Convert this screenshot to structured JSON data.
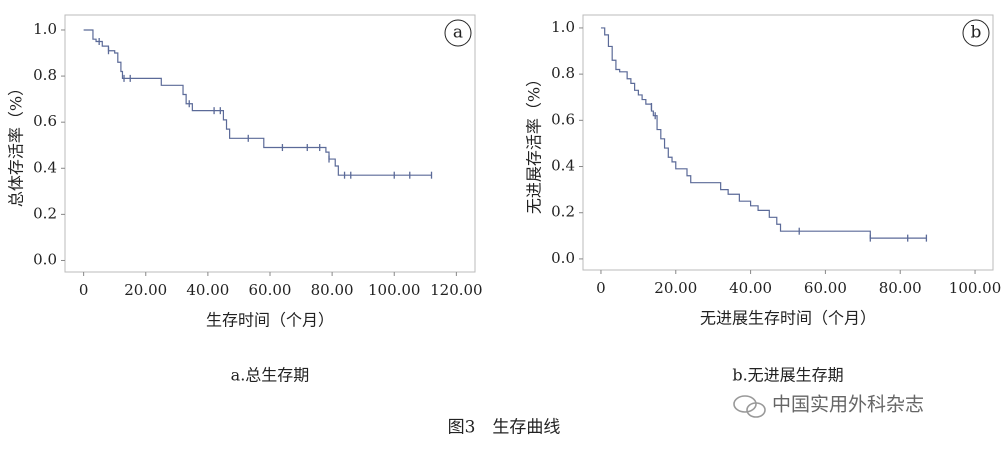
{
  "chart_data": [
    {
      "type": "step",
      "panel": "a",
      "caption": "a.总生存期",
      "y_label": "总体存活率（%）",
      "x_label": "生存时间（个月）",
      "color": "#5b6a98",
      "x": [
        0,
        3,
        4,
        6,
        8,
        10,
        11,
        12,
        12.5,
        25,
        32,
        33,
        35,
        45,
        46,
        47,
        58,
        78,
        79,
        81,
        82,
        112
      ],
      "values": [
        1.0,
        0.96,
        0.95,
        0.93,
        0.91,
        0.9,
        0.86,
        0.82,
        0.79,
        0.76,
        0.72,
        0.68,
        0.65,
        0.61,
        0.57,
        0.53,
        0.49,
        0.47,
        0.44,
        0.41,
        0.37,
        0.37
      ],
      "censored_x": [
        5,
        8,
        13,
        15,
        34,
        42,
        44,
        53,
        64,
        72,
        76,
        79,
        84,
        86,
        100,
        105,
        112
      ],
      "censored_values": [
        0.95,
        0.91,
        0.79,
        0.79,
        0.68,
        0.65,
        0.65,
        0.53,
        0.49,
        0.49,
        0.49,
        0.44,
        0.37,
        0.37,
        0.37,
        0.37,
        0.37
      ],
      "xlim": [
        -6,
        126
      ],
      "ylim": [
        -0.05,
        1.065
      ],
      "xticks": [
        0,
        {
          "value": 20,
          "label": "20.00"
        },
        {
          "value": 40,
          "label": "40.00"
        },
        {
          "value": 60,
          "label": "60.00"
        },
        {
          "value": 80,
          "label": "80.00"
        },
        {
          "value": 100,
          "label": "100.00"
        },
        {
          "value": 120,
          "label": "120.00"
        }
      ],
      "yticks": [
        {
          "value": 0,
          "label": "0.0"
        },
        {
          "value": 0.2,
          "label": "0.2"
        },
        {
          "value": 0.4,
          "label": "0.4"
        },
        {
          "value": 0.6,
          "label": "0.6"
        },
        {
          "value": 0.8,
          "label": "0.8"
        },
        {
          "value": 1,
          "label": "1.0"
        }
      ]
    },
    {
      "type": "step",
      "panel": "b",
      "caption": "b.无进展生存期",
      "y_label": "无进展存活率（%）",
      "x_label": "无进展生存时间（个月）",
      "color": "#5b6a98",
      "x": [
        0,
        1,
        2,
        3,
        4,
        5,
        7,
        8,
        9,
        10,
        11,
        12,
        13.5,
        14,
        15,
        16,
        17,
        18,
        19,
        20,
        23,
        24,
        32,
        34,
        37,
        40,
        42,
        45,
        47,
        48,
        72,
        87
      ],
      "values": [
        1.0,
        0.97,
        0.92,
        0.86,
        0.82,
        0.81,
        0.78,
        0.76,
        0.73,
        0.71,
        0.69,
        0.67,
        0.64,
        0.62,
        0.56,
        0.52,
        0.48,
        0.44,
        0.42,
        0.39,
        0.36,
        0.33,
        0.3,
        0.28,
        0.25,
        0.23,
        0.21,
        0.18,
        0.15,
        0.12,
        0.09,
        0.09
      ],
      "censored_x": [
        13.5,
        14.5,
        53,
        72,
        82,
        87
      ],
      "censored_values": [
        0.66,
        0.62,
        0.12,
        0.09,
        0.09,
        0.09
      ],
      "xlim": [
        -4.8,
        104.8
      ],
      "ylim": [
        -0.048,
        1.056
      ],
      "xticks": [
        0,
        {
          "value": 20,
          "label": "20.00"
        },
        {
          "value": 40,
          "label": "40.00"
        },
        {
          "value": 60,
          "label": "60.00"
        },
        {
          "value": 80,
          "label": "80.00"
        },
        {
          "value": 100,
          "label": "100.00"
        }
      ],
      "yticks": [
        {
          "value": 0,
          "label": "0.0"
        },
        {
          "value": 0.2,
          "label": "0.2"
        },
        {
          "value": 0.4,
          "label": "0.4"
        },
        {
          "value": 0.6,
          "label": "0.6"
        },
        {
          "value": 0.8,
          "label": "0.8"
        },
        {
          "value": 1,
          "label": "1.0"
        }
      ]
    }
  ],
  "figure_caption": "图3　生存曲线",
  "watermark": "中国实用外科杂志"
}
